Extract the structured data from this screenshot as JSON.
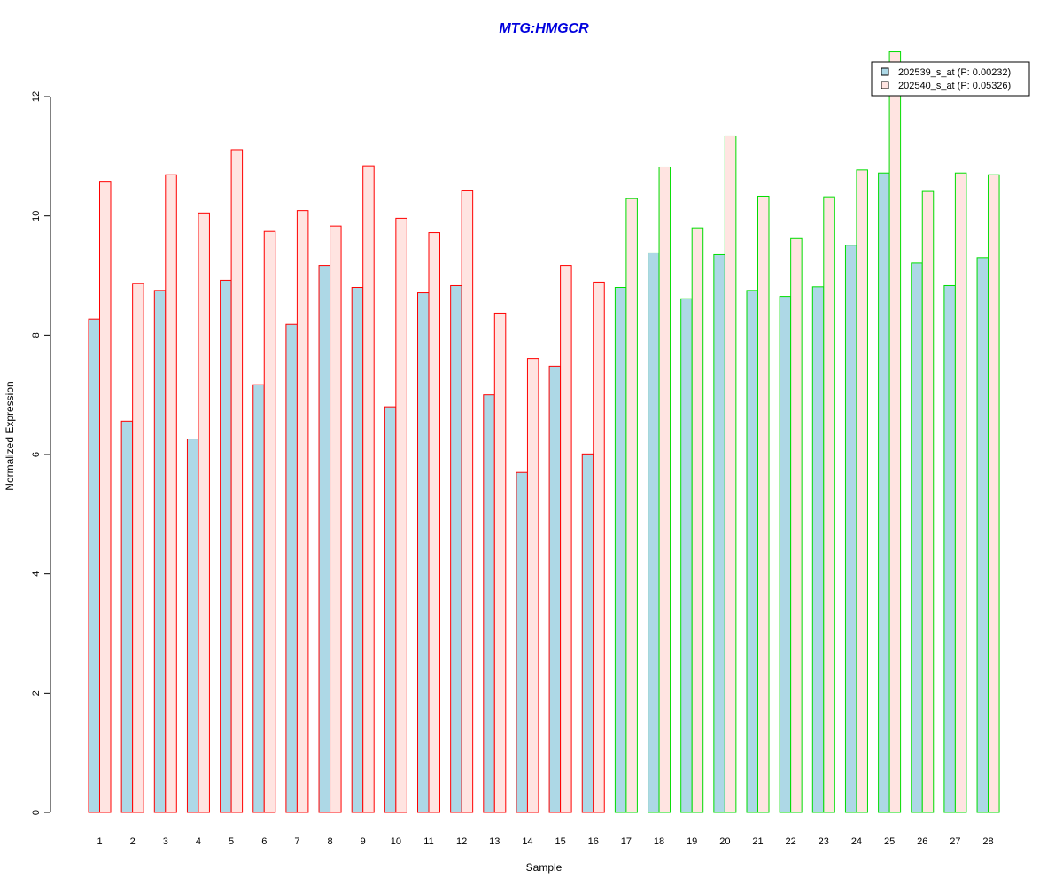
{
  "chart_data": {
    "type": "bar",
    "title": "MTG:HMGCR",
    "title_color": "#0000DD",
    "xlabel": "Sample",
    "ylabel": "Normalized Expression",
    "ylim": [
      0,
      12
    ],
    "yticks": [
      "0",
      "2",
      "4",
      "6",
      "8",
      "10",
      "12"
    ],
    "categories": [
      "1",
      "2",
      "3",
      "4",
      "5",
      "6",
      "7",
      "8",
      "9",
      "10",
      "11",
      "12",
      "13",
      "14",
      "15",
      "16",
      "17",
      "18",
      "19",
      "20",
      "21",
      "22",
      "23",
      "24",
      "25",
      "26",
      "27",
      "28"
    ],
    "group_colors": [
      "#FF0000",
      "#FF0000",
      "#FF0000",
      "#FF0000",
      "#FF0000",
      "#FF0000",
      "#FF0000",
      "#FF0000",
      "#FF0000",
      "#FF0000",
      "#FF0000",
      "#FF0000",
      "#FF0000",
      "#FF0000",
      "#FF0000",
      "#FF0000",
      "#00DD00",
      "#00DD00",
      "#00DD00",
      "#00DD00",
      "#00DD00",
      "#00DD00",
      "#00DD00",
      "#00DD00",
      "#00DD00",
      "#00DD00",
      "#00DD00",
      "#00DD00"
    ],
    "series": [
      {
        "name": "202539_s_at (P: 0.00232)",
        "fill": "#ADD8E6",
        "values": [
          8.27,
          6.56,
          8.75,
          6.26,
          8.92,
          7.17,
          8.18,
          9.17,
          8.8,
          6.8,
          8.71,
          8.83,
          7.0,
          5.7,
          7.48,
          6.01,
          8.8,
          9.38,
          8.61,
          9.35,
          8.75,
          8.65,
          8.81,
          9.51,
          10.72,
          9.21,
          8.83,
          9.3
        ]
      },
      {
        "name": "202540_s_at (P: 0.05326)",
        "fill": "#FFE4E1",
        "values": [
          10.58,
          8.87,
          10.69,
          10.05,
          11.11,
          9.74,
          10.09,
          9.83,
          10.84,
          9.96,
          9.72,
          10.42,
          8.37,
          7.61,
          9.17,
          8.89,
          10.29,
          10.82,
          9.8,
          11.34,
          10.33,
          9.62,
          10.32,
          10.77,
          12.75,
          10.41,
          10.72,
          10.69
        ]
      }
    ],
    "legend_position": "top-right",
    "grid": false
  }
}
